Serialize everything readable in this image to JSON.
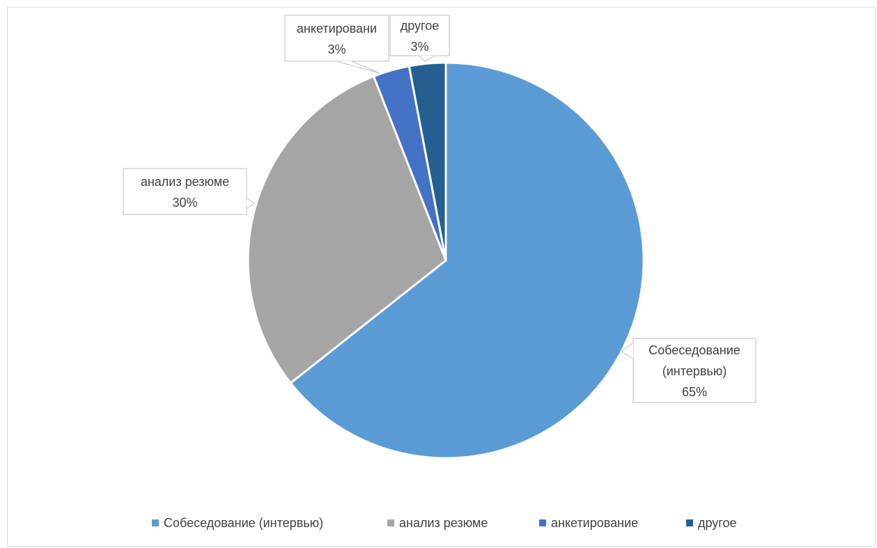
{
  "chart_data": {
    "type": "pie",
    "title": "",
    "categories": [
      "Собеседование (интервью)",
      "анализ резюме",
      "анкетирование",
      "другое"
    ],
    "values": [
      65,
      30,
      3,
      3
    ],
    "value_labels": [
      "65%",
      "30%",
      "3%",
      "3%"
    ],
    "callout_labels": [
      [
        "Собеседование",
        "(интервью)",
        "65%"
      ],
      [
        "анализ резюме",
        "30%"
      ],
      [
        "анкетировани",
        "3%"
      ],
      [
        "другое",
        "3%"
      ]
    ],
    "colors": [
      "#5b9bd5",
      "#a5a5a5",
      "#4472c4",
      "#255e91"
    ],
    "legend_position": "bottom"
  }
}
